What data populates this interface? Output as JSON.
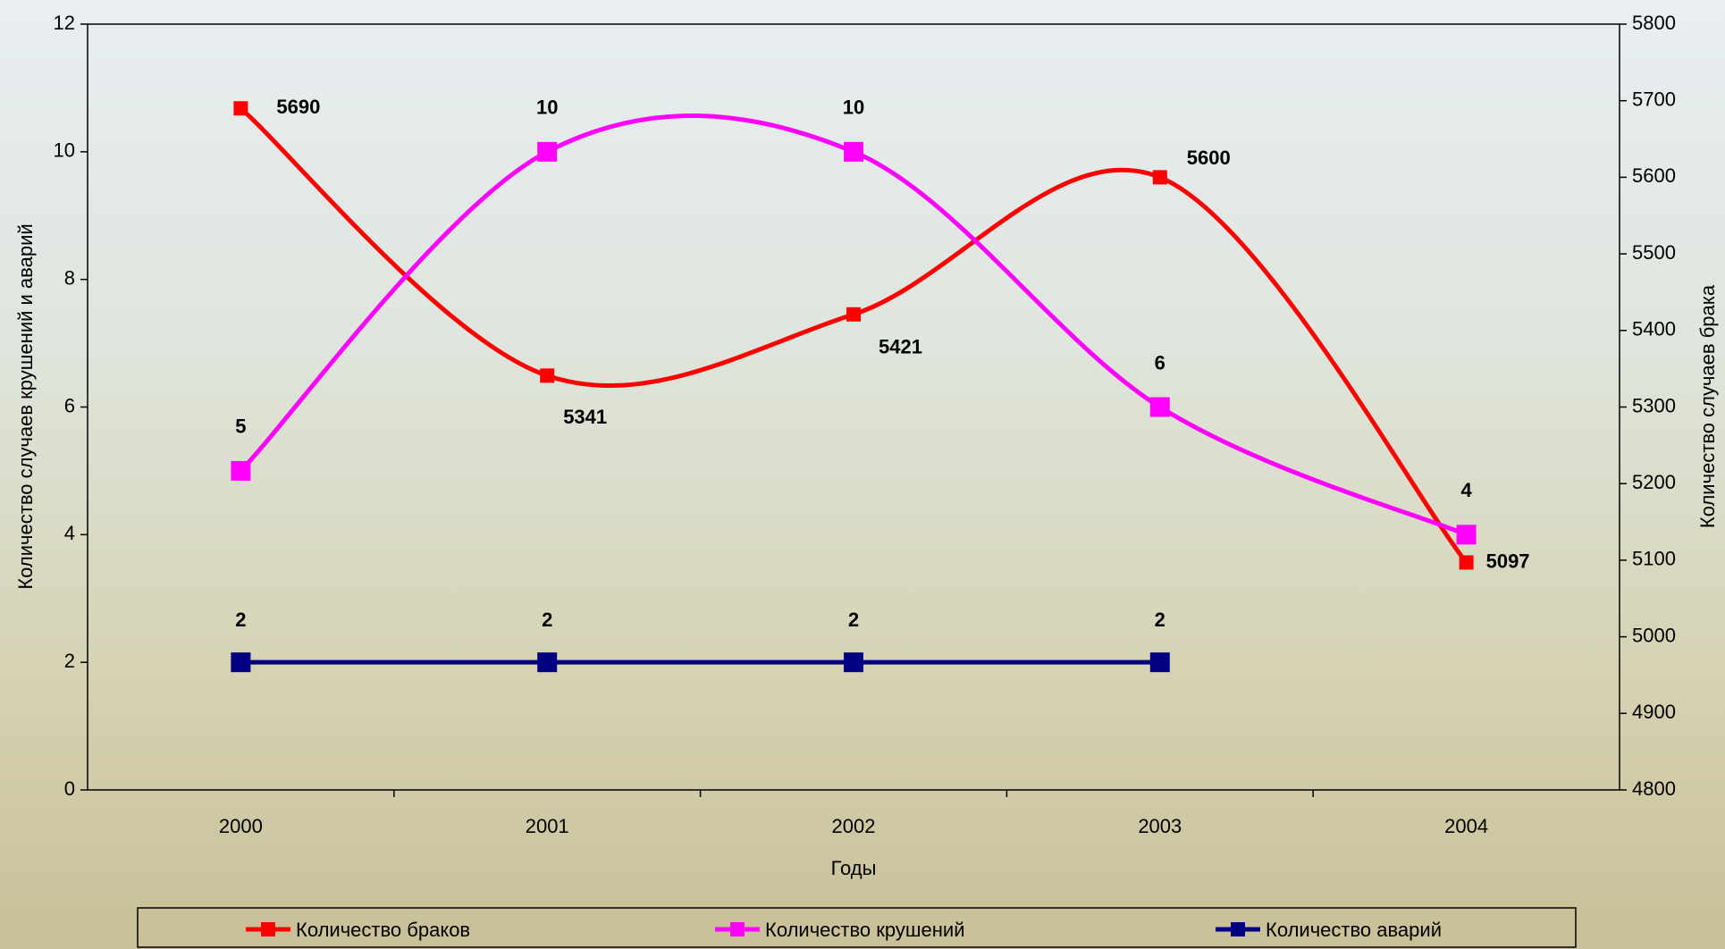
{
  "chart_data": {
    "type": "line",
    "x_label": "Годы",
    "y_label": "Количество случаев крушений и аварий",
    "y2_label": "Количество случаев брака",
    "categories": [
      "2000",
      "2001",
      "2002",
      "2003",
      "2004"
    ],
    "series": [
      {
        "name": "Количество браков",
        "color": "#ff0000",
        "axis": "y2",
        "values": [
          5690,
          5341,
          5421,
          5600,
          5097
        ]
      },
      {
        "name": "Количество крушений",
        "color": "#ff00ff",
        "values": [
          5,
          10,
          10,
          6,
          4
        ]
      },
      {
        "name": "Количество аварий",
        "color": "#000080",
        "values": [
          2,
          2,
          2,
          2,
          null
        ]
      }
    ],
    "ylim": [
      0,
      12
    ],
    "yticks": [
      0,
      2,
      4,
      6,
      8,
      10,
      12
    ],
    "y2lim": [
      4800,
      5800
    ],
    "y2ticks": [
      4800,
      4900,
      5000,
      5100,
      5200,
      5300,
      5400,
      5500,
      5600,
      5700,
      5800
    ],
    "smooth": true,
    "legend": "bottom"
  }
}
